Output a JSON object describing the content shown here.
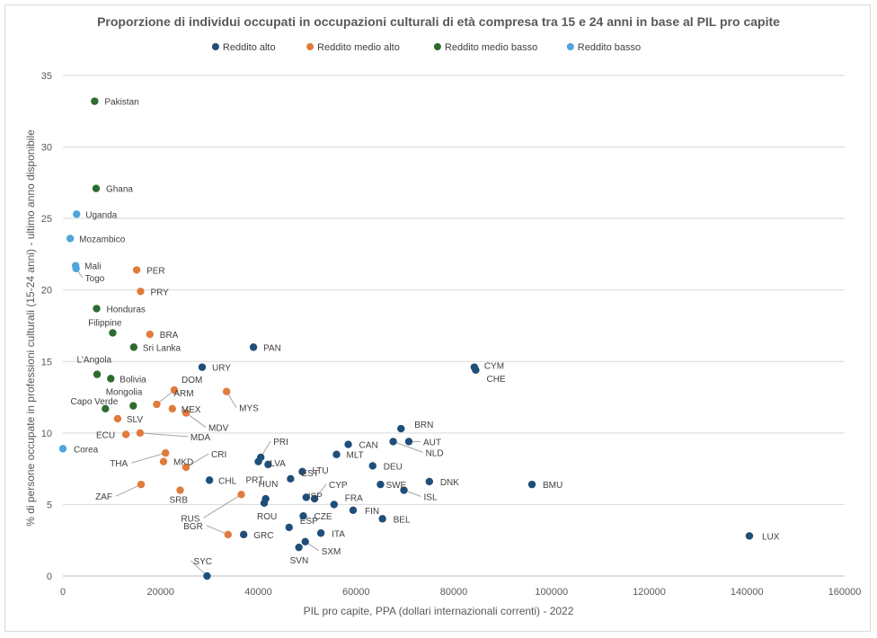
{
  "chart_data": {
    "type": "scatter",
    "title": "Proporzione di individui occupati  in occupazioni culturali di età compresa tra 15 e 24 anni in base al PIL pro capite",
    "xlabel": "PIL pro capite, PPA (dollari internazionali correnti) - 2022",
    "ylabel": "% di persone occupate in professioni culturali (15-24 anni) - ultimo anno disponibile",
    "xlim": [
      0,
      160000
    ],
    "ylim": [
      0,
      35
    ],
    "x_ticks": [
      "0",
      "20000",
      "40000",
      "60000",
      "80000",
      "100000",
      "120000",
      "140000",
      "160000"
    ],
    "y_ticks": [
      "0",
      "5",
      "10",
      "15",
      "20",
      "25",
      "30",
      "35"
    ],
    "grid": "horizontal",
    "legend_position": "top",
    "series": [
      {
        "name": "Reddito alto",
        "color": "#1f4e79",
        "points": [
          {
            "label": "LUX",
            "x": 140500,
            "y": 2.8
          },
          {
            "label": "BMU",
            "x": 96000,
            "y": 6.4
          },
          {
            "label": "CYM",
            "x": 84200,
            "y": 14.6
          },
          {
            "label": "CHE",
            "x": 84500,
            "y": 14.4
          },
          {
            "label": "BRN",
            "x": 69200,
            "y": 10.3
          },
          {
            "label": "AUT",
            "x": 70800,
            "y": 9.4
          },
          {
            "label": "NLD",
            "x": 67600,
            "y": 9.4
          },
          {
            "label": "DNK",
            "x": 75000,
            "y": 6.6
          },
          {
            "label": "ISL",
            "x": 69800,
            "y": 6.0
          },
          {
            "label": "SWE",
            "x": 65000,
            "y": 6.4
          },
          {
            "label": "BEL",
            "x": 65400,
            "y": 4.0
          },
          {
            "label": "DEU",
            "x": 63400,
            "y": 7.7
          },
          {
            "label": "FIN",
            "x": 59400,
            "y": 4.6
          },
          {
            "label": "CAN",
            "x": 58400,
            "y": 9.2
          },
          {
            "label": "MLT",
            "x": 56000,
            "y": 8.5
          },
          {
            "label": "FRA",
            "x": 55500,
            "y": 5.0
          },
          {
            "label": "CYP",
            "x": 51500,
            "y": 5.4
          },
          {
            "label": "ISP",
            "x": 49800,
            "y": 5.5
          },
          {
            "label": "ITA",
            "x": 52800,
            "y": 3.0
          },
          {
            "label": "CZE",
            "x": 49200,
            "y": 4.2
          },
          {
            "label": "SXM",
            "x": 49600,
            "y": 2.4
          },
          {
            "label": "SVN",
            "x": 48300,
            "y": 2.0
          },
          {
            "label": "ESP",
            "x": 46300,
            "y": 3.4
          },
          {
            "label": "LTU",
            "x": 49000,
            "y": 7.3
          },
          {
            "label": "EST",
            "x": 46600,
            "y": 6.8
          },
          {
            "label": "PRI",
            "x": 40500,
            "y": 8.3
          },
          {
            "label": "LVA",
            "x": 42000,
            "y": 7.8
          },
          {
            "label": "PRT",
            "x": 40000,
            "y": 8.0
          },
          {
            "label": "HUN",
            "x": 41500,
            "y": 5.4
          },
          {
            "label": "ROU",
            "x": 41200,
            "y": 5.1
          },
          {
            "label": "PAN",
            "x": 39000,
            "y": 16.0
          },
          {
            "label": "GRC",
            "x": 37000,
            "y": 2.9
          },
          {
            "label": "URY",
            "x": 28500,
            "y": 14.6
          },
          {
            "label": "CHL",
            "x": 30000,
            "y": 6.7
          },
          {
            "label": "SYC",
            "x": 29500,
            "y": 0.0
          }
        ]
      },
      {
        "name": "Reddito medio alto",
        "color": "#e07b3c",
        "points": [
          {
            "label": "PER",
            "x": 15100,
            "y": 21.4
          },
          {
            "label": "PRY",
            "x": 15900,
            "y": 19.9
          },
          {
            "label": "BRA",
            "x": 17800,
            "y": 16.9
          },
          {
            "label": "DOM",
            "x": 22800,
            "y": 13.0
          },
          {
            "label": "ARM",
            "x": 19200,
            "y": 12.0
          },
          {
            "label": "MEX",
            "x": 22400,
            "y": 11.7
          },
          {
            "label": "MDV",
            "x": 25200,
            "y": 11.4
          },
          {
            "label": "MYS",
            "x": 33500,
            "y": 12.9
          },
          {
            "label": "SLV",
            "x": 11200,
            "y": 11.0
          },
          {
            "label": "ECU",
            "x": 12900,
            "y": 9.9
          },
          {
            "label": "MDA",
            "x": 15800,
            "y": 10.0
          },
          {
            "label": "CRI",
            "x": 25200,
            "y": 7.6
          },
          {
            "label": "THA",
            "x": 21000,
            "y": 8.6
          },
          {
            "label": "MKD",
            "x": 20600,
            "y": 8.0
          },
          {
            "label": "ZAF",
            "x": 16000,
            "y": 6.4
          },
          {
            "label": "SRB",
            "x": 24000,
            "y": 6.0
          },
          {
            "label": "RUS",
            "x": 36500,
            "y": 5.7
          },
          {
            "label": "BGR",
            "x": 33800,
            "y": 2.9
          }
        ]
      },
      {
        "name": "Reddito medio basso",
        "color": "#2e6b2e",
        "points": [
          {
            "label": "Pakistan",
            "x": 6500,
            "y": 33.2
          },
          {
            "label": "Ghana",
            "x": 6800,
            "y": 27.1
          },
          {
            "label": "Honduras",
            "x": 6900,
            "y": 18.7
          },
          {
            "label": "Filippine",
            "x": 10200,
            "y": 17.0
          },
          {
            "label": "Sri Lanka",
            "x": 14500,
            "y": 16.0
          },
          {
            "label": "L'Angola",
            "x": 7000,
            "y": 14.1
          },
          {
            "label": "Bolivia",
            "x": 9800,
            "y": 13.8
          },
          {
            "label": "Capo Verde",
            "x": 8700,
            "y": 11.7
          },
          {
            "label": "Mongolia",
            "x": 14400,
            "y": 11.9
          }
        ]
      },
      {
        "name": "Reddito basso",
        "color": "#4ea6dc",
        "points": [
          {
            "label": "Uganda",
            "x": 2800,
            "y": 25.3
          },
          {
            "label": "Mozambico",
            "x": 1500,
            "y": 23.6
          },
          {
            "label": "Mali",
            "x": 2600,
            "y": 21.7
          },
          {
            "label": "Togo",
            "x": 2700,
            "y": 21.5
          },
          {
            "label": "Corea",
            "x": 0,
            "y": 8.9
          }
        ]
      }
    ]
  }
}
